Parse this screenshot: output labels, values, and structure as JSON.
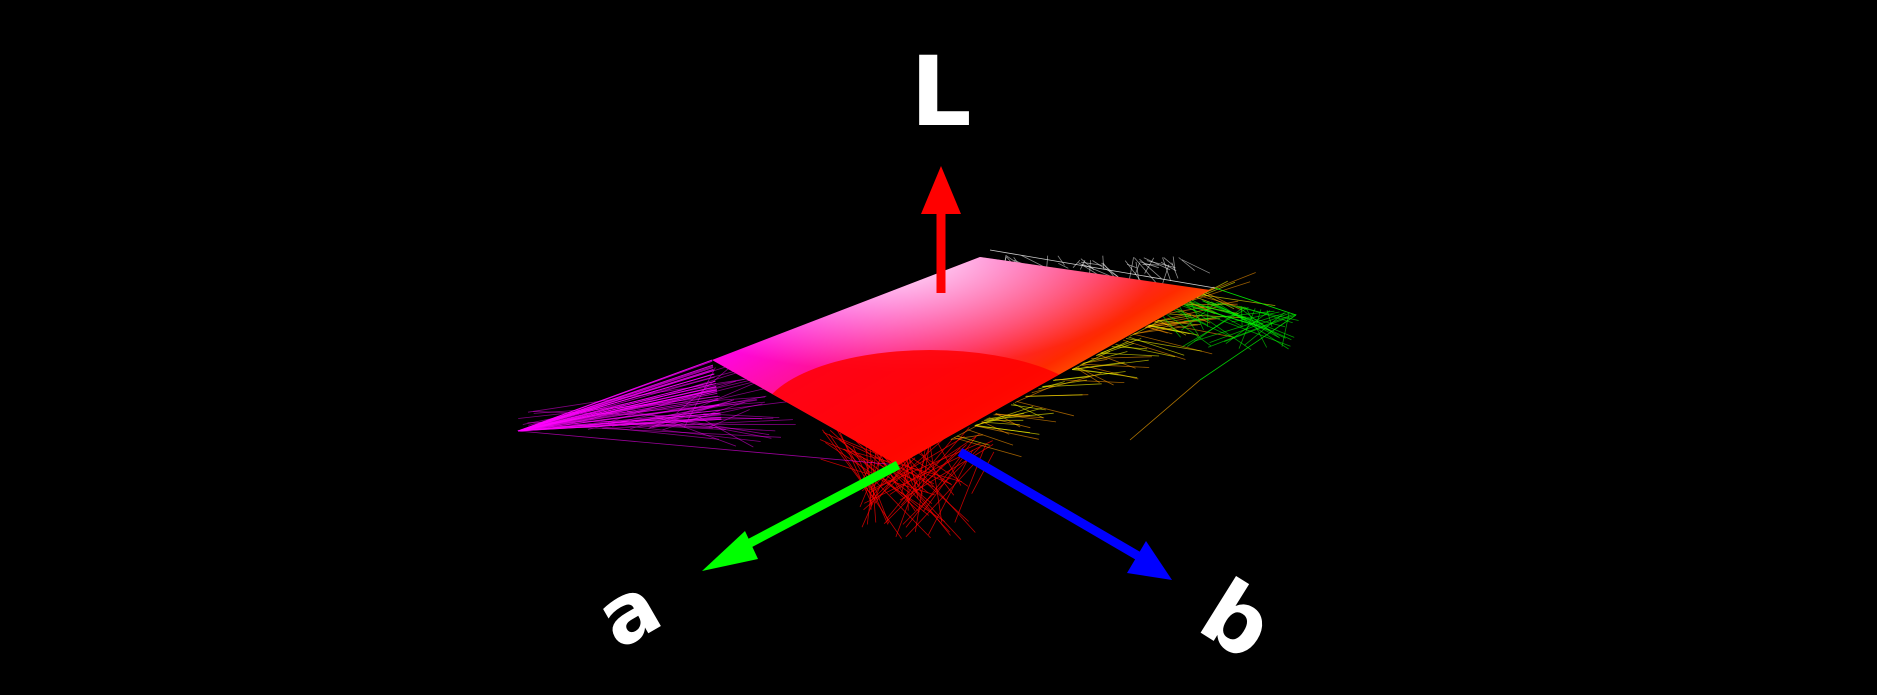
{
  "axes": {
    "L": {
      "label": "L",
      "color": "#ff0000"
    },
    "a": {
      "label": "a",
      "color": "#00ff00"
    },
    "b": {
      "label": "b",
      "color": "#0000ff"
    }
  },
  "gamut": {
    "corner_colors": {
      "top": "#ffffff",
      "left": "#ff00ff",
      "front": "#ff0000",
      "right": "#ffff00",
      "back_right": "#00ff00"
    }
  }
}
